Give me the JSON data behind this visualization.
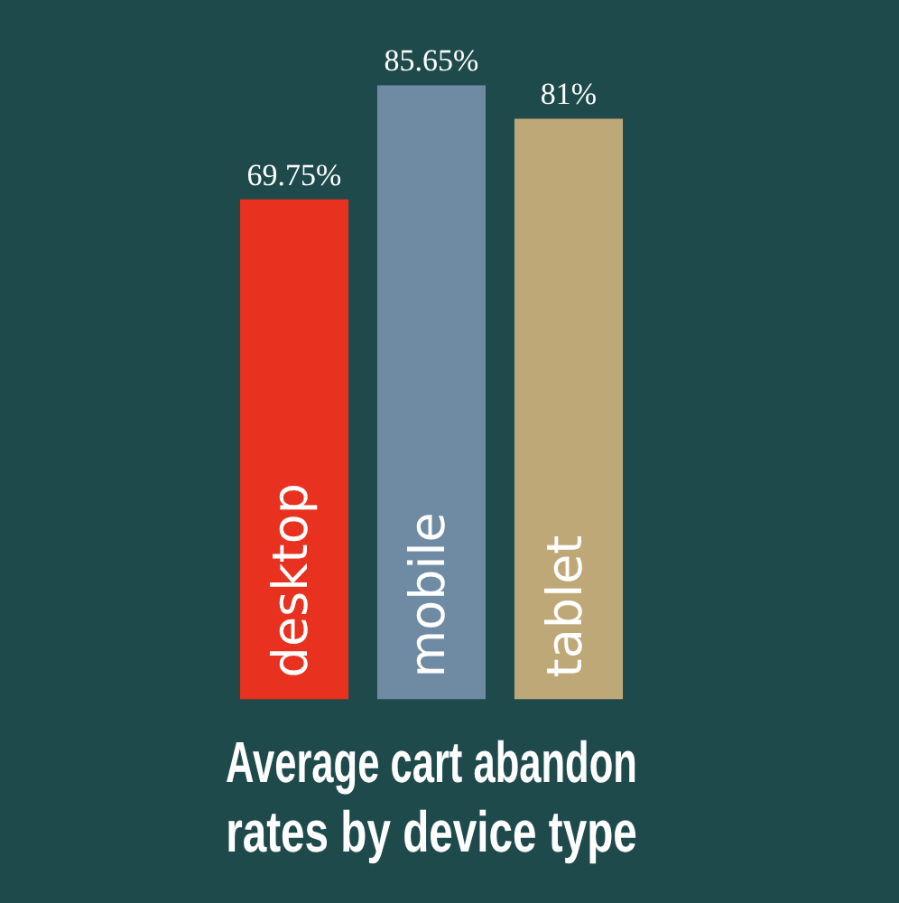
{
  "chart_data": {
    "type": "bar",
    "title": "Average cart abandon rates by device type",
    "categories": [
      "desktop",
      "mobile",
      "tablet"
    ],
    "values": [
      69.75,
      85.65,
      81
    ],
    "colors": [
      "#e8311f",
      "#6f8aa3",
      "#bfa878"
    ],
    "value_labels": [
      "69.75%",
      "85.65%",
      "81%"
    ]
  }
}
